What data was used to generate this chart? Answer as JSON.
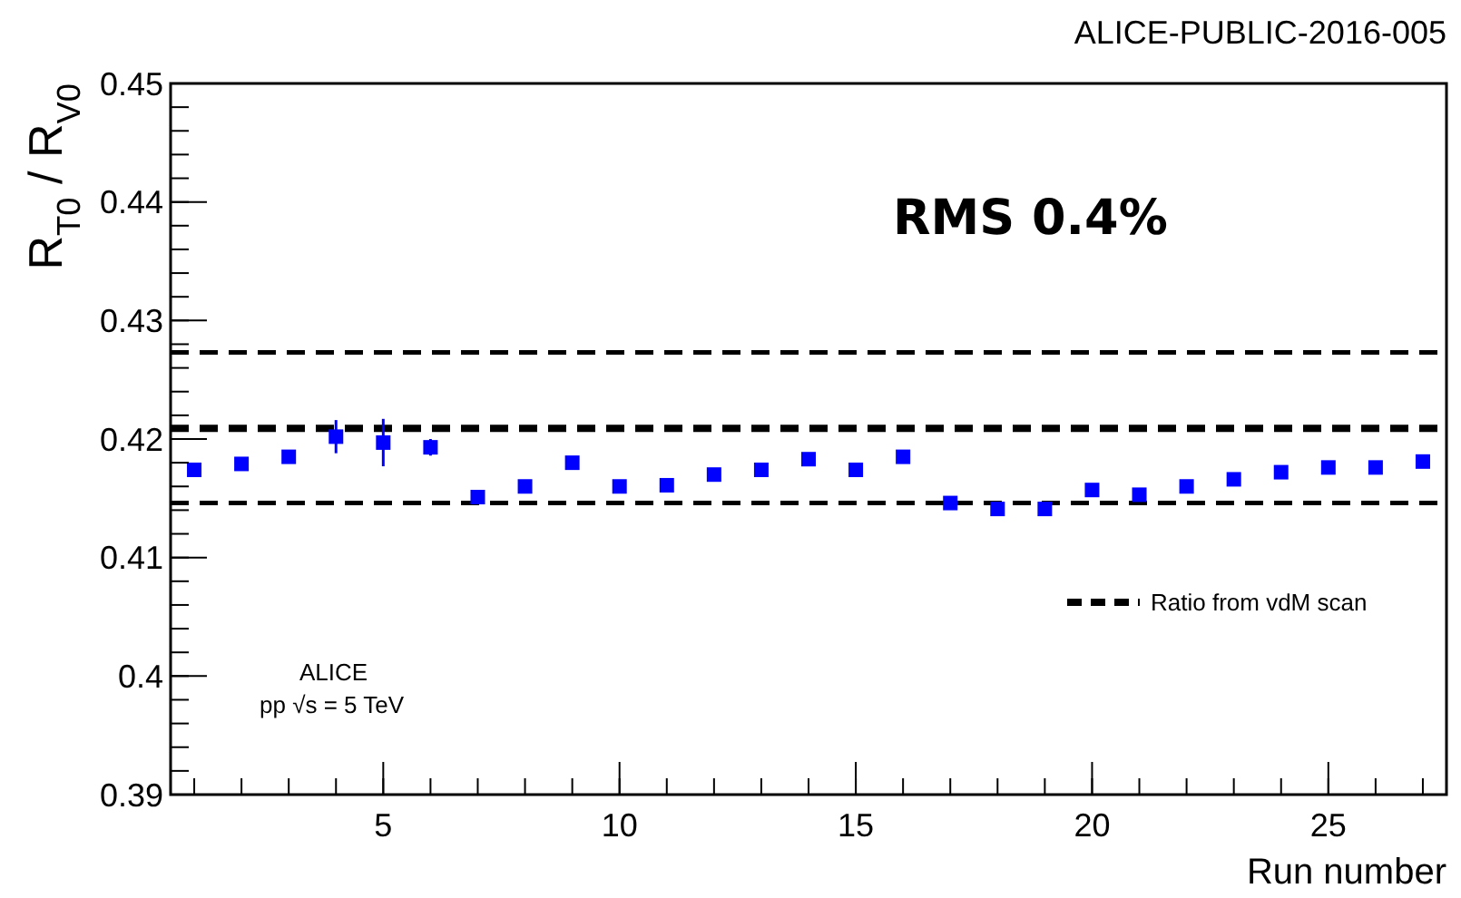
{
  "chart_data": {
    "type": "scatter",
    "xlabel": "Run number",
    "ylabel": "R$_{T0}$ / R$_{V0}$",
    "x": [
      1,
      2,
      3,
      4,
      5,
      6,
      7,
      8,
      9,
      10,
      11,
      12,
      13,
      14,
      15,
      16,
      17,
      18,
      19,
      20,
      21,
      22,
      23,
      24,
      25,
      26,
      27
    ],
    "series": [
      {
        "color": "#0000ff",
        "values": [
          0.4174,
          0.4179,
          0.4185,
          0.4202,
          0.4197,
          0.4193,
          0.4151,
          0.416,
          0.418,
          0.416,
          0.4161,
          0.417,
          0.4174,
          0.4183,
          0.4174,
          0.4185,
          0.4146,
          0.4141,
          0.4141,
          0.4157,
          0.4153,
          0.416,
          0.4166,
          0.4172,
          0.4176,
          0.4176,
          0.4181
        ],
        "errors": [
          null,
          null,
          null,
          0.0014,
          0.002,
          0.0007,
          null,
          null,
          null,
          null,
          0.0003,
          null,
          null,
          null,
          null,
          null,
          0.0003,
          0.0003,
          null,
          0.0004,
          null,
          null,
          null,
          null,
          null,
          null,
          null
        ]
      }
    ],
    "xlim": [
      0.5,
      27.5
    ],
    "xticks": [
      5,
      10,
      15,
      20,
      25
    ],
    "ylim": [
      0.39,
      0.45
    ],
    "yticks": [
      0.39,
      0.4,
      0.41,
      0.42,
      0.43,
      0.44,
      0.45
    ],
    "marker": "square",
    "grid": false,
    "legend": "bottom right",
    "ref_lines": [
      {
        "axis": "y",
        "value": 0.4273,
        "color": "#000000",
        "line_style": "dashed"
      },
      {
        "axis": "y",
        "value": 0.4209,
        "color": "#000000",
        "line_style": "dashed",
        "label": "Ratio from vdM scan"
      },
      {
        "axis": "y",
        "value": 0.4146,
        "color": "#000000",
        "line_style": "dashed"
      }
    ],
    "annotations": [
      "ALICE-PUBLIC-2016-005",
      "RMS 0.4%",
      "ALICE",
      "pp √s = 5 TeV"
    ]
  }
}
